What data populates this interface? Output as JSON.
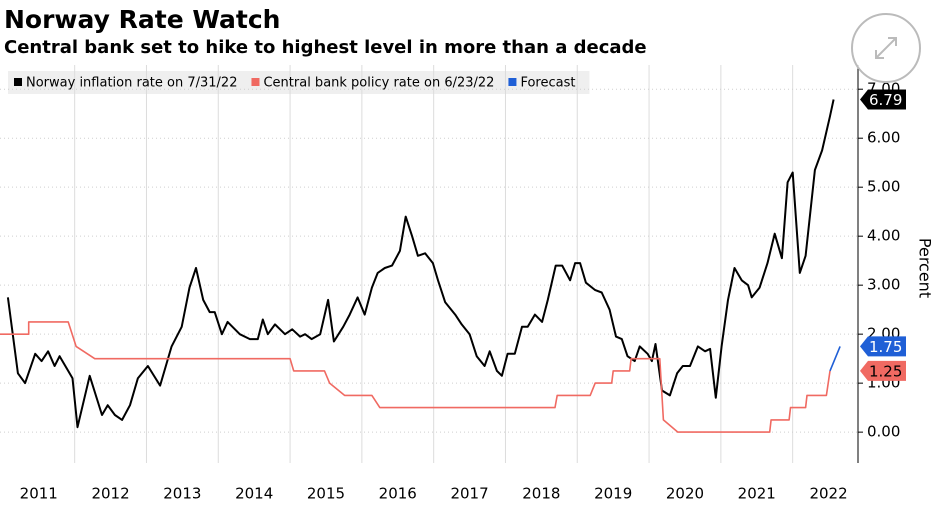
{
  "chart_data": {
    "type": "line",
    "title": "Norway Rate Watch",
    "subtitle": "Central bank set to hike to highest level in more than a decade",
    "y_label": "Percent",
    "xlim": [
      2010.96,
      2022.91
    ],
    "ylim": [
      -0.63,
      7.29
    ],
    "xticks": [
      {
        "value": 2011.5,
        "label": "2011"
      },
      {
        "value": 2012.5,
        "label": "2012"
      },
      {
        "value": 2013.5,
        "label": "2013"
      },
      {
        "value": 2014.5,
        "label": "2014"
      },
      {
        "value": 2015.5,
        "label": "2015"
      },
      {
        "value": 2016.5,
        "label": "2016"
      },
      {
        "value": 2017.5,
        "label": "2017"
      },
      {
        "value": 2018.5,
        "label": "2018"
      },
      {
        "value": 2019.5,
        "label": "2019"
      },
      {
        "value": 2020.5,
        "label": "2020"
      },
      {
        "value": 2021.5,
        "label": "2021"
      },
      {
        "value": 2022.5,
        "label": "2022"
      }
    ],
    "xgrid": [
      2012,
      2013,
      2014,
      2015,
      2016,
      2017,
      2018,
      2019,
      2020,
      2021,
      2022
    ],
    "yticks": [
      {
        "value": 0,
        "label": "0.00"
      },
      {
        "value": 1,
        "label": "1.00"
      },
      {
        "value": 2,
        "label": "2.00"
      },
      {
        "value": 3,
        "label": "3.00"
      },
      {
        "value": 4,
        "label": "4.00"
      },
      {
        "value": 5,
        "label": "5.00"
      },
      {
        "value": 6,
        "label": "6.00"
      },
      {
        "value": 7,
        "label": "7.00"
      }
    ],
    "grid": true,
    "series": [
      {
        "name": "Norway inflation rate on 7/31/22",
        "color": "#000000",
        "end_label": "6.79",
        "end_value": 6.79,
        "x": [
          2011.07,
          2011.21,
          2011.31,
          2011.45,
          2011.54,
          2011.63,
          2011.72,
          2011.79,
          2011.91,
          2011.97,
          2012.04,
          2012.21,
          2012.38,
          2012.46,
          2012.56,
          2012.66,
          2012.77,
          2012.88,
          2013.02,
          2013.19,
          2013.35,
          2013.49,
          2013.6,
          2013.69,
          2013.79,
          2013.88,
          2013.95,
          2014.05,
          2014.13,
          2014.3,
          2014.44,
          2014.55,
          2014.62,
          2014.69,
          2014.79,
          2014.93,
          2015.03,
          2015.14,
          2015.21,
          2015.3,
          2015.42,
          2015.53,
          2015.61,
          2015.74,
          2015.83,
          2015.94,
          2016.04,
          2016.14,
          2016.22,
          2016.32,
          2016.42,
          2016.53,
          2016.61,
          2016.7,
          2016.78,
          2016.88,
          2016.99,
          2017.06,
          2017.16,
          2017.3,
          2017.39,
          2017.5,
          2017.6,
          2017.71,
          2017.78,
          2017.88,
          2017.95,
          2018.03,
          2018.13,
          2018.23,
          2018.31,
          2018.41,
          2018.51,
          2018.59,
          2018.7,
          2018.79,
          2018.9,
          2018.97,
          2019.04,
          2019.12,
          2019.25,
          2019.34,
          2019.45,
          2019.54,
          2019.62,
          2019.7,
          2019.8,
          2019.87,
          2019.98,
          2020.04,
          2020.09,
          2020.18,
          2020.29,
          2020.39,
          2020.47,
          2020.57,
          2020.68,
          2020.78,
          2020.85,
          2020.93,
          2021.01,
          2021.1,
          2021.19,
          2021.29,
          2021.38,
          2021.43,
          2021.54,
          2021.65,
          2021.75,
          2021.85,
          2021.93,
          2022.0,
          2022.1,
          2022.18,
          2022.31,
          2022.41,
          2022.52,
          2022.57
        ],
        "values": [
          2.75,
          1.2,
          1.0,
          1.6,
          1.45,
          1.65,
          1.35,
          1.55,
          1.25,
          1.1,
          0.1,
          1.15,
          0.35,
          0.55,
          0.35,
          0.25,
          0.55,
          1.1,
          1.35,
          0.95,
          1.75,
          2.15,
          2.95,
          3.35,
          2.7,
          2.45,
          2.45,
          2.0,
          2.25,
          2.0,
          1.9,
          1.9,
          2.3,
          2.0,
          2.2,
          2.0,
          2.1,
          1.95,
          2.0,
          1.9,
          2.0,
          2.7,
          1.85,
          2.15,
          2.4,
          2.75,
          2.4,
          2.95,
          3.25,
          3.35,
          3.4,
          3.7,
          4.4,
          4.0,
          3.6,
          3.65,
          3.45,
          3.1,
          2.65,
          2.4,
          2.2,
          2.0,
          1.55,
          1.35,
          1.65,
          1.25,
          1.15,
          1.6,
          1.6,
          2.15,
          2.15,
          2.4,
          2.25,
          2.7,
          3.4,
          3.4,
          3.1,
          3.45,
          3.45,
          3.05,
          2.9,
          2.85,
          2.5,
          1.95,
          1.9,
          1.55,
          1.45,
          1.75,
          1.6,
          1.45,
          1.8,
          0.85,
          0.75,
          1.2,
          1.35,
          1.35,
          1.75,
          1.65,
          1.7,
          0.7,
          1.75,
          2.7,
          3.35,
          3.1,
          3.0,
          2.75,
          2.95,
          3.45,
          4.05,
          3.55,
          5.1,
          5.3,
          3.25,
          3.6,
          5.35,
          5.75,
          6.45,
          6.79
        ]
      },
      {
        "name": "Central bank policy rate on 6/23/22",
        "color": "#f06a62",
        "end_label": "1.25",
        "end_value": 1.25,
        "x": [
          2010.96,
          2011.36,
          2011.36,
          2011.91,
          2012.02,
          2012.28,
          2015.0,
          2015.05,
          2015.48,
          2015.55,
          2015.76,
          2016.14,
          2016.25,
          2018.69,
          2018.72,
          2019.18,
          2019.25,
          2019.48,
          2019.5,
          2019.73,
          2019.75,
          2020.15,
          2020.2,
          2020.4,
          2021.68,
          2021.7,
          2021.95,
          2021.97,
          2022.18,
          2022.2,
          2022.47,
          2022.52
        ],
        "values": [
          2.0,
          2.0,
          2.25,
          2.25,
          1.75,
          1.5,
          1.5,
          1.25,
          1.25,
          1.0,
          0.75,
          0.75,
          0.5,
          0.5,
          0.75,
          0.75,
          1.0,
          1.0,
          1.25,
          1.25,
          1.5,
          1.5,
          0.25,
          0.0,
          0.0,
          0.25,
          0.25,
          0.5,
          0.5,
          0.75,
          0.75,
          1.25
        ]
      },
      {
        "name": "Forecast",
        "color": "#1f5fd6",
        "end_label": "1.75",
        "end_value": 1.75,
        "x": [
          2022.52,
          2022.66
        ],
        "values": [
          1.25,
          1.75
        ]
      }
    ]
  }
}
